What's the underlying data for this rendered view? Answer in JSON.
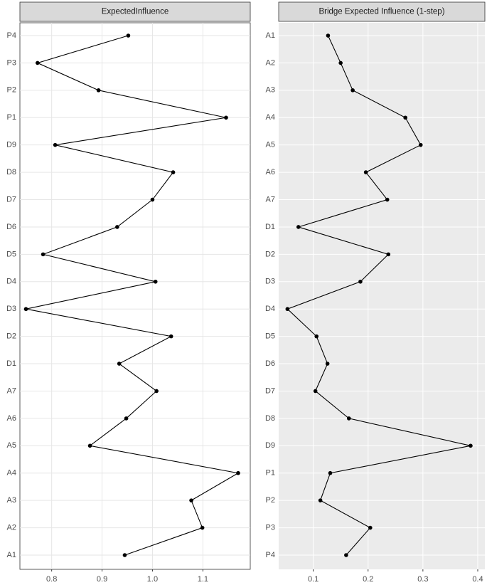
{
  "chart_data": [
    {
      "type": "line",
      "title": "ExpectedInfluence",
      "categories": [
        "P4",
        "P3",
        "P2",
        "P1",
        "D9",
        "D8",
        "D7",
        "D6",
        "D5",
        "D4",
        "D3",
        "D2",
        "D1",
        "A7",
        "A6",
        "A5",
        "A4",
        "A3",
        "A2",
        "A1"
      ],
      "values": [
        0.952,
        0.772,
        0.893,
        1.146,
        0.807,
        1.041,
        1.0,
        0.93,
        0.783,
        1.006,
        0.749,
        1.037,
        0.934,
        1.008,
        0.948,
        0.876,
        1.17,
        1.077,
        1.099,
        0.945
      ],
      "xlim": [
        0.737,
        1.194
      ],
      "xticks": [
        0.8,
        0.9,
        {
          "value": 1,
          "label": "1.0"
        },
        1.1
      ],
      "color": "#000000",
      "panel_background": "#ffffff",
      "grid_color": "#e6e6e6",
      "grid": true
    },
    {
      "type": "line",
      "title": "Bridge Expected Influence (1-step)",
      "categories": [
        "A1",
        "A2",
        "A3",
        "A4",
        "A5",
        "A6",
        "A7",
        "D1",
        "D2",
        "D3",
        "D4",
        "D5",
        "D6",
        "D7",
        "D8",
        "D9",
        "P1",
        "P2",
        "P3",
        "P4"
      ],
      "values": [
        0.127,
        0.15,
        0.172,
        0.268,
        0.296,
        0.196,
        0.235,
        0.073,
        0.237,
        0.186,
        0.053,
        0.106,
        0.126,
        0.104,
        0.165,
        0.387,
        0.131,
        0.113,
        0.204,
        0.16
      ],
      "xlim": [
        0.037,
        0.413
      ],
      "xticks": [
        0.1,
        0.2,
        0.3,
        0.4
      ],
      "color": "#000000",
      "panel_background": "#ebebeb",
      "grid_color": "#ffffff",
      "grid": true
    }
  ]
}
